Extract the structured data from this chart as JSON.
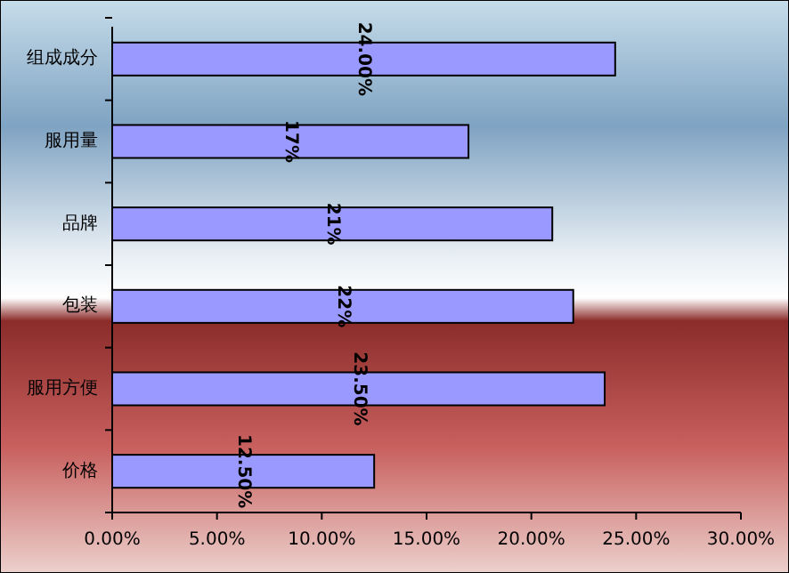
{
  "chart_data": {
    "type": "bar",
    "orientation": "horizontal",
    "categories": [
      "组成成分",
      "服用量",
      "品牌",
      "包装",
      "服用方便",
      "价格"
    ],
    "values": [
      24,
      17,
      21,
      22,
      23.5,
      12.5
    ],
    "value_labels": [
      "24.00%",
      "17%",
      "21%",
      "22%",
      "23.50%",
      "12.50%"
    ],
    "color": "#9999ff",
    "xlim": [
      0,
      30
    ],
    "xticks": [
      {
        "value": 0,
        "label": "0.00%"
      },
      {
        "value": 5,
        "label": "5.00%"
      },
      {
        "value": 10,
        "label": "10.00%"
      },
      {
        "value": 15,
        "label": "15.00%"
      },
      {
        "value": 20,
        "label": "20.00%"
      },
      {
        "value": 25,
        "label": "25.00%"
      },
      {
        "value": 30,
        "label": "30.00%"
      }
    ],
    "grid": false
  }
}
